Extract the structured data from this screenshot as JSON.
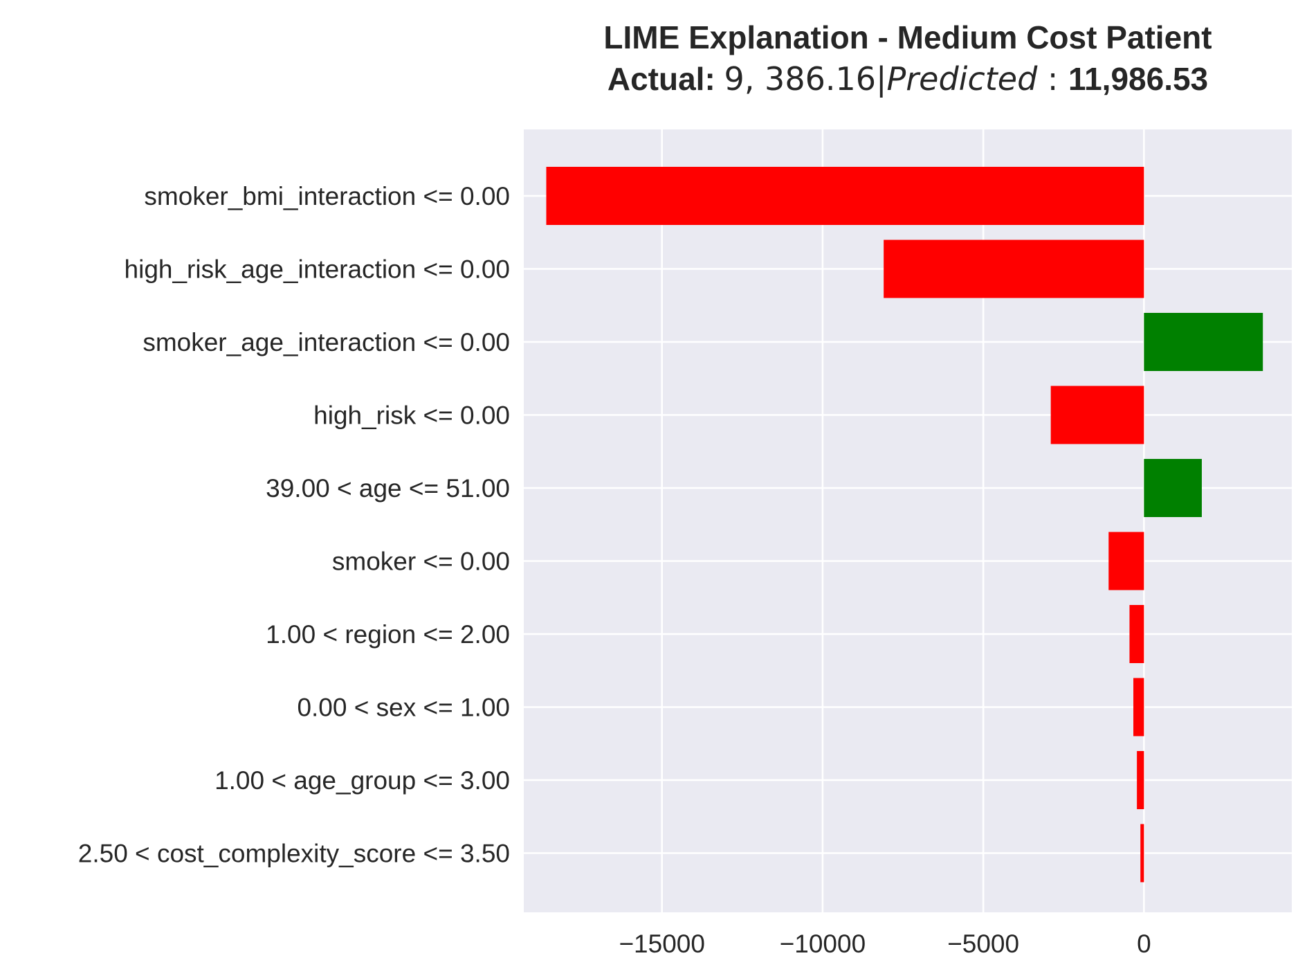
{
  "title": {
    "line1": "LIME Explanation - Medium Cost Patient",
    "line2_actual_label": "Actual:",
    "line2_actual_value": "9, 386.16|",
    "line2_predicted_label": "Predicted",
    "line2_sep": " : ",
    "line2_predicted_value": "11,986.53"
  },
  "chart_data": {
    "type": "bar",
    "orientation": "horizontal",
    "title": "LIME Explanation - Medium Cost Patient Actual: $9,386.16 | Predicted: $11,986.53",
    "xlabel": "",
    "ylabel": "",
    "xlim": [
      -19300,
      4600
    ],
    "grid": true,
    "categories": [
      "smoker_bmi_interaction <= 0.00",
      "high_risk_age_interaction <= 0.00",
      "smoker_age_interaction <= 0.00",
      "high_risk <= 0.00",
      "39.00 < age <= 51.00",
      "smoker <= 0.00",
      "1.00 < region <= 2.00",
      "0.00 < sex <= 1.00",
      "1.00 < age_group <= 3.00",
      "2.50 < cost_complexity_score <= 3.50"
    ],
    "values": [
      -18600,
      -8100,
      3700,
      -2900,
      1800,
      -1100,
      -450,
      -330,
      -220,
      -110
    ],
    "xticks": [
      -15000,
      -10000,
      -5000,
      0
    ],
    "xtick_labels": [
      "−15000",
      "−10000",
      "−5000",
      "0"
    ],
    "colors": {
      "positive": "#008000",
      "negative": "#ff0000",
      "plot_bg": "#eaeaf2",
      "grid": "#ffffff"
    }
  }
}
